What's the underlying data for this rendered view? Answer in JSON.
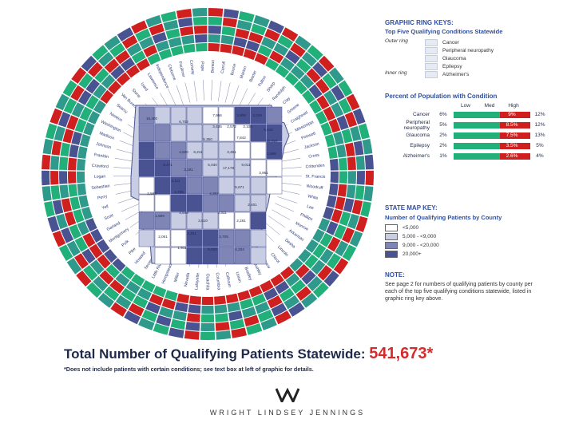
{
  "ring_keys": {
    "heading": "GRAPHIC RING KEYS:",
    "subheading": "Top Five Qualifying Conditions Statewide",
    "outer_ring": "Outer ring",
    "inner_ring": "Inner ring",
    "conditions": [
      "Cancer",
      "Peripheral neuropathy",
      "Glaucoma",
      "Epilepsy",
      "Alzheimer's"
    ]
  },
  "percent_section": {
    "heading": "Percent of Population with Condition",
    "col_low": "Low",
    "col_med": "Med",
    "col_high": "High",
    "rows": [
      {
        "label": "Cancer",
        "low": "6%",
        "med": "9%",
        "high": "12%"
      },
      {
        "label": "Peripheral neuropathy",
        "low": "5%",
        "med": "8.5%",
        "high": "12%"
      },
      {
        "label": "Glaucoma",
        "low": "2%",
        "med": "7.5%",
        "high": "13%"
      },
      {
        "label": "Epilepsy",
        "low": "2%",
        "med": "3.5%",
        "high": "5%"
      },
      {
        "label": "Alzheimer's",
        "low": "1%",
        "med": "2.6%",
        "high": "4%"
      }
    ]
  },
  "state_map_key": {
    "heading": "STATE MAP KEY:",
    "subheading": "Number of Qualifying Patients by County",
    "items": [
      {
        "label": "<5,000",
        "color": "#ffffff"
      },
      {
        "label": "5,000 - <9,000",
        "color": "#c8cde3"
      },
      {
        "label": "9,000 - <20,000",
        "color": "#7f86b5"
      },
      {
        "label": "20,000+",
        "color": "#4a5391"
      }
    ]
  },
  "note": {
    "heading": "NOTE:",
    "text": "See page 2 for numbers of qualifying patients by county per each of the top five qualifying conditions statewide, listed in graphic ring key above."
  },
  "total": {
    "label": "Total Number of Qualifying Patients Statewide:",
    "value": "541,673",
    "asterisk": "*"
  },
  "footnote": "*Does not include patients with certain conditions; see text box at left of graphic for details.",
  "brand": "WRIGHT LINDSEY JENNINGS",
  "logo_mark": "W",
  "colors": {
    "green": "#22b07a",
    "red": "#d01f1f",
    "navy": "#2c3a78"
  },
  "counties": [
    "Benton",
    "Carroll",
    "Boone",
    "Marion",
    "Baxter",
    "Fulton",
    "Sharp",
    "Randolph",
    "Clay",
    "Greene",
    "Craighead",
    "Mississippi",
    "Poinsett",
    "Jackson",
    "Cross",
    "Crittenden",
    "St. Francis",
    "Woodruff",
    "White",
    "Lee",
    "Phillips",
    "Monroe",
    "Arkansas",
    "Desha",
    "Lincoln",
    "Chicot",
    "Drew",
    "Ashley",
    "Bradley",
    "Union",
    "Calhoun",
    "Columbia",
    "Ouachita",
    "Lafayette",
    "Nevada",
    "Miller",
    "Hempstead",
    "Little River",
    "Sevier",
    "Howard",
    "Pike",
    "Polk",
    "Montgomery",
    "Garland",
    "Scott",
    "Yell",
    "Perry",
    "Sebastian",
    "Logan",
    "Crawford",
    "Franklin",
    "Johnson",
    "Madison",
    "Washington",
    "Newton",
    "Searcy",
    "Van Buren",
    "Stone",
    "Izard",
    "Lawrence",
    "Independence",
    "Cleburne",
    "Faulkner",
    "Conway",
    "Pope"
  ],
  "map_numbers": [
    "15,400",
    "6,702",
    "7,956",
    "3,909",
    "3,029",
    "2,572",
    "3,435",
    "3,100",
    "5,642",
    "7,842",
    "12,310",
    "5,350",
    "6,211",
    "4,620",
    "3,451",
    "2,595",
    "9,011",
    "17,178",
    "3,951",
    "8,471",
    "3,191",
    "5,030",
    "4,111",
    "2,568",
    "3,789",
    "4,302",
    "5,671",
    "3,311",
    "2,401",
    "4,549",
    "1,809",
    "3,810",
    "2,281",
    "3,491",
    "3,705",
    "2,061",
    "1,911",
    "5,000",
    "4,204"
  ]
}
